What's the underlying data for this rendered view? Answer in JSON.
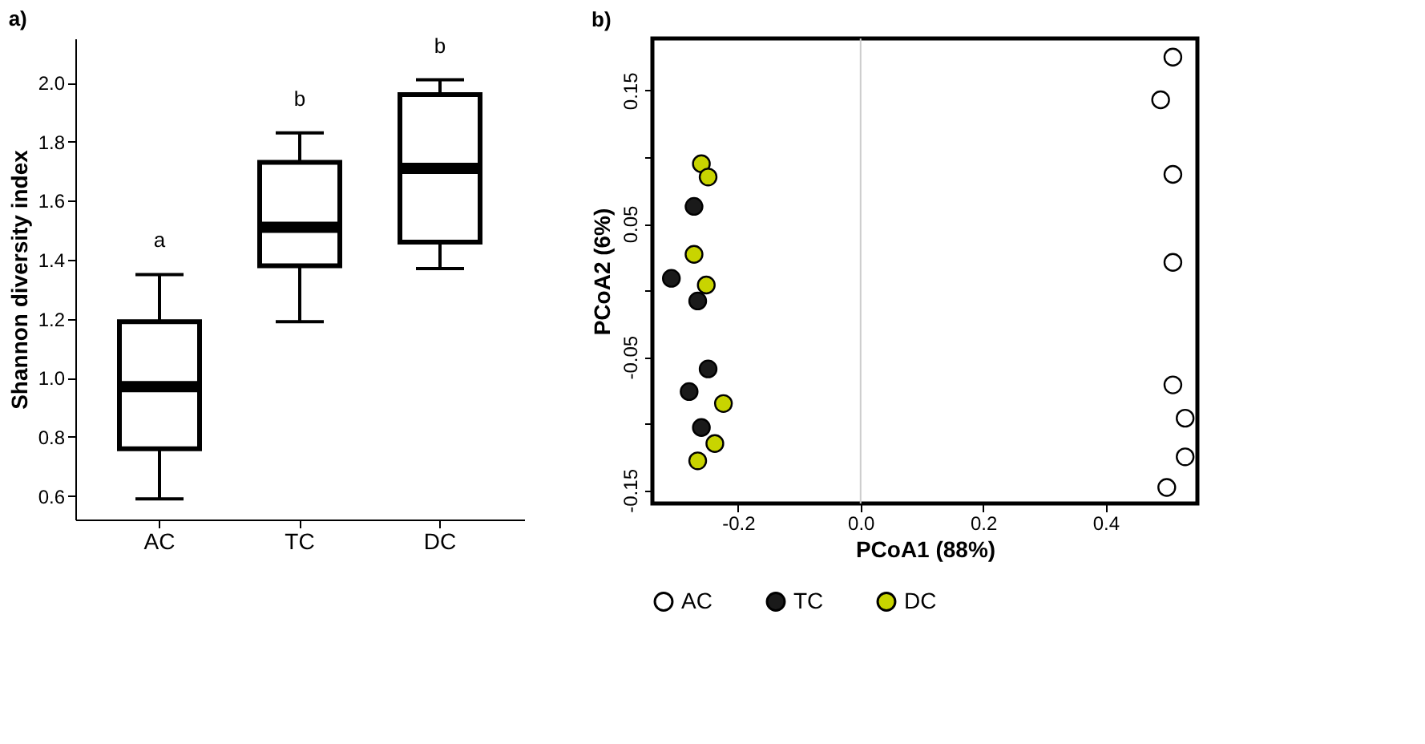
{
  "chart_data": [
    {
      "type": "box",
      "title": "a)",
      "ylabel": "Shannon diversity index",
      "categories": [
        "AC",
        "TC",
        "DC"
      ],
      "series": [
        {
          "color": "#000000",
          "boxes": [
            {
              "low": 0.59,
              "q1": 0.76,
              "median": 0.97,
              "q3": 1.19,
              "high": 1.35
            },
            {
              "low": 1.19,
              "q1": 1.38,
              "median": 1.51,
              "q3": 1.73,
              "high": 1.83
            },
            {
              "low": 1.37,
              "q1": 1.46,
              "median": 1.71,
              "q3": 1.96,
              "high": 2.01
            }
          ]
        }
      ],
      "ylim": [
        0.52,
        2.15
      ],
      "yticks": [
        0.6,
        0.8,
        {
          "value": 1,
          "label": "1.0"
        },
        1.2,
        1.4,
        1.6,
        1.8,
        {
          "value": 2,
          "label": "2.0"
        }
      ],
      "grid": false,
      "annotations": [
        "a",
        "b",
        "b"
      ]
    },
    {
      "type": "scatter",
      "title": "b)",
      "xlabel": "PCoA1 (88%)",
      "ylabel": "PCoA2 (6%)",
      "marker": "circle",
      "legend": "bottom",
      "grid": false,
      "xlim": [
        -0.34,
        0.55
      ],
      "ylim": [
        -0.16,
        0.189
      ],
      "xticks": [
        -0.2,
        {
          "value": 0,
          "label": "0.0"
        },
        0.2,
        0.4
      ],
      "yticks": [
        0.15,
        {
          "value": 0.1,
          "label": null
        },
        0.05,
        {
          "value": 0,
          "label": null
        },
        -0.05,
        {
          "value": -0.1,
          "label": null
        },
        -0.15
      ],
      "ref_lines": [
        {
          "axis": "x",
          "value": 0,
          "color": "#cccccc"
        }
      ],
      "series": [
        {
          "name": "AC",
          "color": "#ffffff",
          "x": [
            0.49,
            0.51,
            0.51,
            0.51,
            0.51,
            0.53,
            0.53,
            0.5
          ],
          "values": [
            0.143,
            0.175,
            0.087,
            0.021,
            -0.071,
            -0.096,
            -0.125,
            -0.148
          ]
        },
        {
          "name": "TC",
          "color": "#1a1a1a",
          "x": [
            -0.272,
            -0.309,
            -0.266,
            -0.249,
            -0.28,
            -0.26
          ],
          "values": [
            0.063,
            0.009,
            -0.008,
            -0.059,
            -0.076,
            -0.103
          ]
        },
        {
          "name": "DC",
          "color": "#c8d400",
          "x": [
            -0.26,
            -0.249,
            -0.272,
            -0.252,
            -0.224,
            -0.238,
            -0.266
          ],
          "values": [
            0.095,
            0.085,
            0.027,
            0.004,
            -0.085,
            -0.115,
            -0.128
          ]
        }
      ]
    }
  ]
}
